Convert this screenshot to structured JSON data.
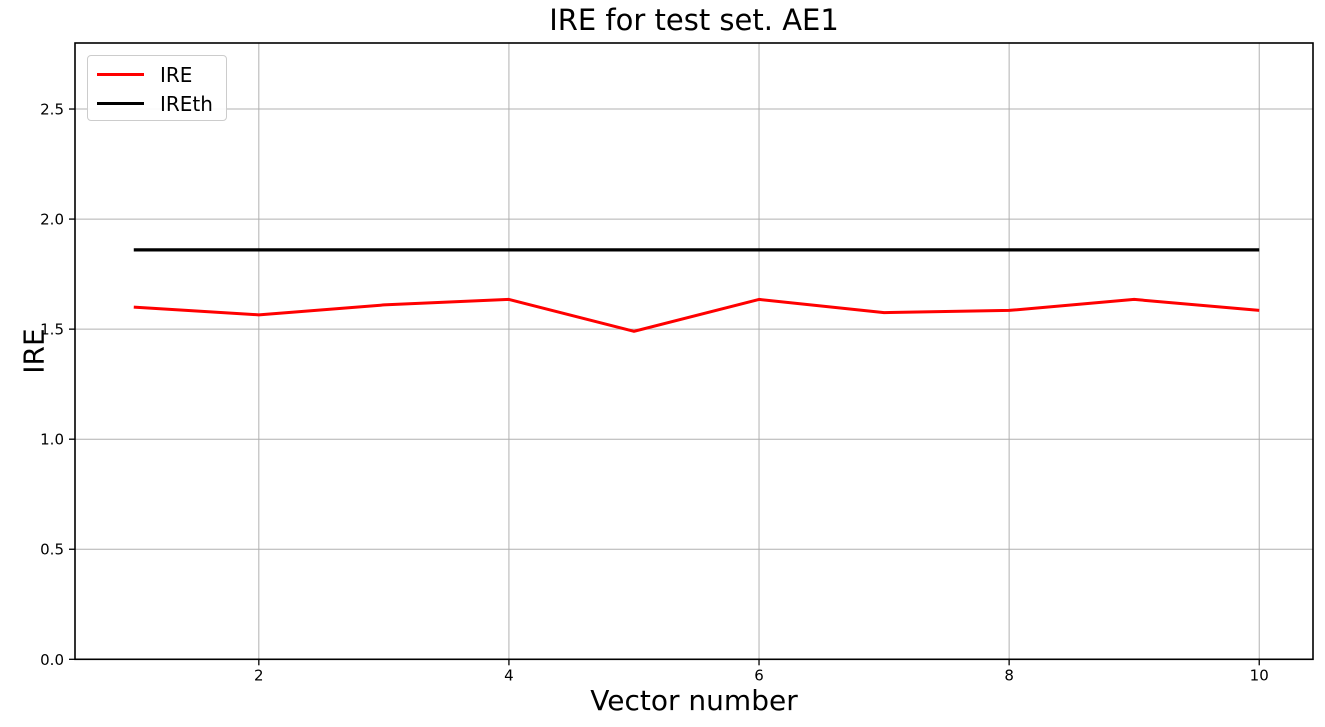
{
  "figure": {
    "background": "#ffffff",
    "title": "IRE for test set. AE1"
  },
  "colors": {
    "ire_line": "#ff0000",
    "ireth_line": "#000000",
    "grid": "#b0b0b0",
    "spine": "#000000",
    "tick_text": "#000000",
    "legend_border": "#cccccc"
  },
  "chart_data": {
    "type": "line",
    "title": "IRE for test set. AE1",
    "xlabel": "Vector number",
    "ylabel": "IRE",
    "x": [
      1,
      2,
      3,
      4,
      5,
      6,
      7,
      8,
      9,
      10
    ],
    "series": [
      {
        "name": "IRE",
        "color": "#ff0000",
        "linewidth": 3,
        "values": [
          1.6,
          1.565,
          1.61,
          1.635,
          1.49,
          1.635,
          1.575,
          1.585,
          1.635,
          1.585
        ]
      },
      {
        "name": "IREth",
        "color": "#000000",
        "linewidth": 3.2,
        "values": [
          1.86,
          1.86,
          1.86,
          1.86,
          1.86,
          1.86,
          1.86,
          1.86,
          1.86,
          1.86
        ]
      }
    ],
    "x_ticks": [
      2,
      4,
      6,
      8,
      10
    ],
    "y_ticks": [
      0.0,
      0.5,
      1.0,
      1.5,
      2.0,
      2.5
    ],
    "xlim": [
      0.53,
      10.43
    ],
    "ylim": [
      0,
      2.8
    ],
    "grid": true,
    "legend_position": "upper left",
    "legend": [
      "IRE",
      "IREth"
    ]
  }
}
